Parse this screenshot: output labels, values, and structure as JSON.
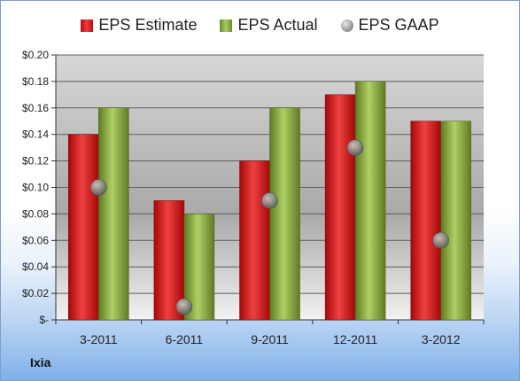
{
  "company": "Ixia",
  "colors": {
    "estimate": "#d01c1c",
    "actual": "#8db040",
    "gaap": "#8a8a8a"
  },
  "chart_data": {
    "type": "bar",
    "categories": [
      "3-2011",
      "6-2011",
      "9-2011",
      "12-2011",
      "3-2012"
    ],
    "series": [
      {
        "name": "EPS Estimate",
        "type": "bar",
        "values": [
          0.14,
          0.09,
          0.12,
          0.17,
          0.15
        ]
      },
      {
        "name": "EPS Actual",
        "type": "bar",
        "values": [
          0.16,
          0.08,
          0.16,
          0.18,
          0.15
        ]
      },
      {
        "name": "EPS GAAP",
        "type": "marker",
        "values": [
          0.1,
          0.01,
          0.09,
          0.13,
          0.06
        ]
      }
    ],
    "yticks": [
      "$-",
      "$0.02",
      "$0.04",
      "$0.06",
      "$0.08",
      "$0.10",
      "$0.12",
      "$0.14",
      "$0.16",
      "$0.18",
      "$0.20"
    ],
    "ylim": [
      0,
      0.2
    ],
    "grid": true,
    "legend_position": "top"
  }
}
